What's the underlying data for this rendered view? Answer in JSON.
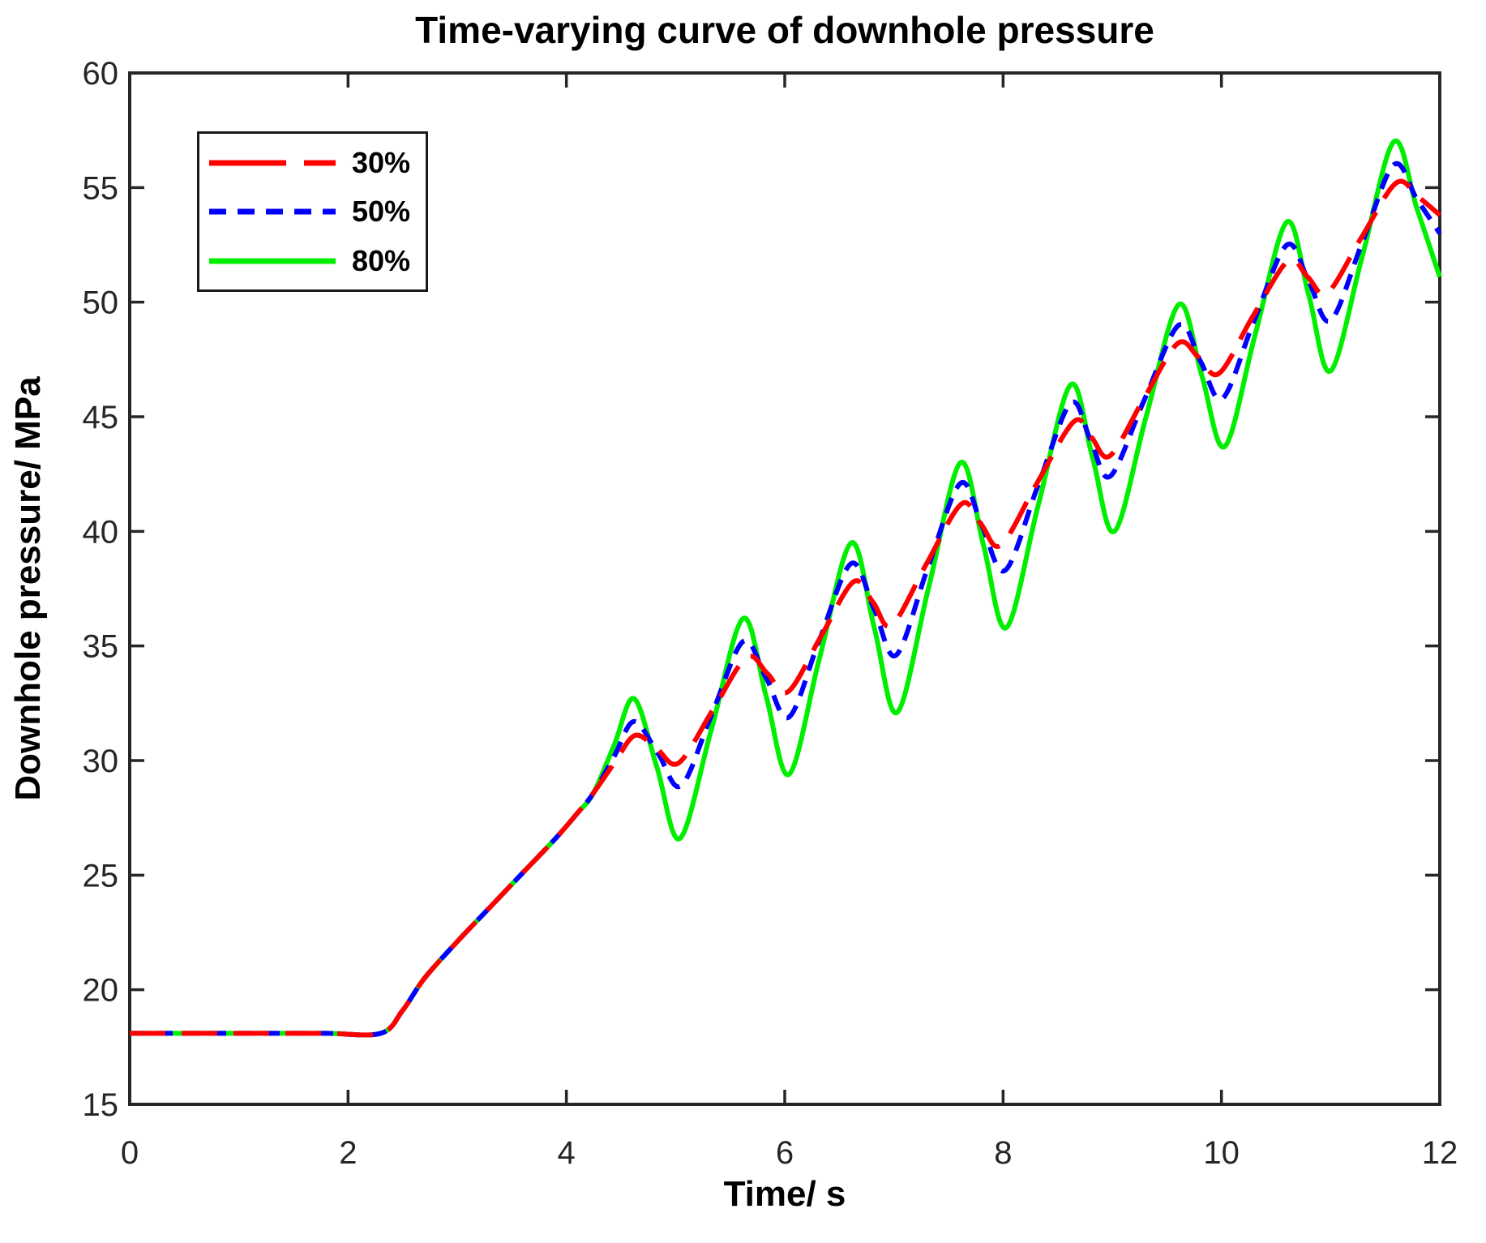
{
  "title": "Time-varying curve of downhole pressure",
  "chart_data": {
    "type": "line",
    "title": "Time-varying curve of downhole pressure",
    "xlabel": "Time/ s",
    "ylabel": "Downhole pressure/ MPa",
    "xlim": [
      0,
      12
    ],
    "ylim": [
      15,
      60
    ],
    "xticks": [
      0,
      2,
      4,
      6,
      8,
      10,
      12
    ],
    "yticks": [
      15,
      20,
      25,
      30,
      35,
      40,
      45,
      50,
      55,
      60
    ],
    "grid": false,
    "legend_position": "top-left",
    "axis_color": "#262626",
    "background": "#ffffff",
    "series": [
      {
        "name": "30%",
        "color": "#ff0000",
        "style": "long-dash",
        "points": [
          [
            0,
            18.1
          ],
          [
            0.6,
            18.1
          ],
          [
            1.2,
            18.1
          ],
          [
            1.8,
            18.1
          ],
          [
            2.3,
            18.1
          ],
          [
            2.5,
            19.1
          ],
          [
            2.7,
            20.5
          ],
          [
            3.0,
            22.1
          ],
          [
            3.3,
            23.6
          ],
          [
            3.6,
            25.1
          ],
          [
            3.9,
            26.6
          ],
          [
            4.1,
            27.7
          ],
          [
            4.25,
            28.6
          ],
          [
            4.44,
            29.9
          ],
          [
            4.63,
            31.1
          ],
          [
            4.83,
            30.5
          ],
          [
            5.03,
            29.9
          ],
          [
            5.34,
            32.2
          ],
          [
            5.65,
            34.5
          ],
          [
            5.84,
            33.8
          ],
          [
            6.03,
            33.0
          ],
          [
            6.33,
            35.4
          ],
          [
            6.63,
            37.8
          ],
          [
            6.81,
            36.9
          ],
          [
            6.98,
            35.9
          ],
          [
            7.3,
            38.6
          ],
          [
            7.62,
            41.2
          ],
          [
            7.8,
            40.3
          ],
          [
            7.98,
            39.4
          ],
          [
            8.31,
            42.1
          ],
          [
            8.65,
            44.8
          ],
          [
            8.81,
            44.1
          ],
          [
            8.98,
            43.3
          ],
          [
            9.29,
            45.8
          ],
          [
            9.6,
            48.2
          ],
          [
            9.79,
            47.6
          ],
          [
            9.98,
            46.9
          ],
          [
            10.29,
            49.4
          ],
          [
            10.61,
            51.8
          ],
          [
            10.79,
            51.1
          ],
          [
            10.97,
            50.4
          ],
          [
            11.28,
            52.8
          ],
          [
            11.6,
            55.2
          ],
          [
            11.8,
            54.6
          ],
          [
            12.0,
            53.8
          ]
        ]
      },
      {
        "name": "50%",
        "color": "#0000ff",
        "style": "short-dash",
        "points": [
          [
            0,
            18.1
          ],
          [
            0.6,
            18.1
          ],
          [
            1.2,
            18.1
          ],
          [
            1.8,
            18.1
          ],
          [
            2.3,
            18.1
          ],
          [
            2.5,
            19.1
          ],
          [
            2.7,
            20.5
          ],
          [
            3.0,
            22.1
          ],
          [
            3.3,
            23.6
          ],
          [
            3.6,
            25.1
          ],
          [
            3.9,
            26.6
          ],
          [
            4.1,
            27.7
          ],
          [
            4.25,
            28.6
          ],
          [
            4.44,
            30.2
          ],
          [
            4.62,
            31.7
          ],
          [
            4.84,
            30.3
          ],
          [
            5.05,
            28.9
          ],
          [
            5.33,
            32.0
          ],
          [
            5.62,
            35.2
          ],
          [
            5.83,
            33.6
          ],
          [
            6.04,
            31.9
          ],
          [
            6.32,
            35.3
          ],
          [
            6.61,
            38.6
          ],
          [
            6.82,
            36.6
          ],
          [
            7.02,
            34.6
          ],
          [
            7.31,
            38.4
          ],
          [
            7.61,
            42.1
          ],
          [
            7.81,
            40.2
          ],
          [
            8.02,
            38.3
          ],
          [
            8.32,
            42.0
          ],
          [
            8.62,
            45.6
          ],
          [
            8.8,
            44.0
          ],
          [
            8.98,
            42.4
          ],
          [
            9.29,
            45.7
          ],
          [
            9.61,
            49.0
          ],
          [
            9.81,
            47.4
          ],
          [
            10.01,
            45.8
          ],
          [
            10.3,
            49.2
          ],
          [
            10.6,
            52.5
          ],
          [
            10.8,
            50.9
          ],
          [
            11.0,
            49.2
          ],
          [
            11.29,
            52.6
          ],
          [
            11.58,
            56.0
          ],
          [
            11.79,
            54.5
          ],
          [
            12.0,
            53.0
          ]
        ]
      },
      {
        "name": "80%",
        "color": "#00ee00",
        "style": "solid",
        "points": [
          [
            0,
            18.1
          ],
          [
            0.6,
            18.1
          ],
          [
            1.2,
            18.1
          ],
          [
            1.8,
            18.1
          ],
          [
            2.3,
            18.1
          ],
          [
            2.5,
            19.1
          ],
          [
            2.7,
            20.5
          ],
          [
            3.0,
            22.1
          ],
          [
            3.3,
            23.6
          ],
          [
            3.6,
            25.1
          ],
          [
            3.9,
            26.6
          ],
          [
            4.1,
            27.7
          ],
          [
            4.25,
            28.6
          ],
          [
            4.44,
            30.7
          ],
          [
            4.62,
            32.7
          ],
          [
            4.83,
            29.7
          ],
          [
            5.04,
            26.6
          ],
          [
            5.33,
            31.4
          ],
          [
            5.62,
            36.2
          ],
          [
            5.83,
            32.8
          ],
          [
            6.04,
            29.4
          ],
          [
            6.32,
            34.5
          ],
          [
            6.61,
            39.5
          ],
          [
            6.82,
            35.8
          ],
          [
            7.03,
            32.1
          ],
          [
            7.32,
            37.6
          ],
          [
            7.61,
            43.0
          ],
          [
            7.82,
            39.4
          ],
          [
            8.03,
            35.8
          ],
          [
            8.32,
            41.1
          ],
          [
            8.62,
            46.4
          ],
          [
            8.82,
            43.2
          ],
          [
            9.02,
            40.0
          ],
          [
            9.31,
            45.0
          ],
          [
            9.61,
            49.9
          ],
          [
            9.82,
            46.8
          ],
          [
            10.03,
            43.7
          ],
          [
            10.31,
            48.6
          ],
          [
            10.6,
            53.5
          ],
          [
            10.8,
            50.3
          ],
          [
            11.0,
            47.0
          ],
          [
            11.29,
            52.0
          ],
          [
            11.58,
            57.0
          ],
          [
            11.79,
            54.1
          ],
          [
            12.0,
            51.1
          ]
        ]
      }
    ],
    "legend": {
      "items": [
        {
          "label": "30%"
        },
        {
          "label": "50%"
        },
        {
          "label": "80%"
        }
      ]
    }
  }
}
